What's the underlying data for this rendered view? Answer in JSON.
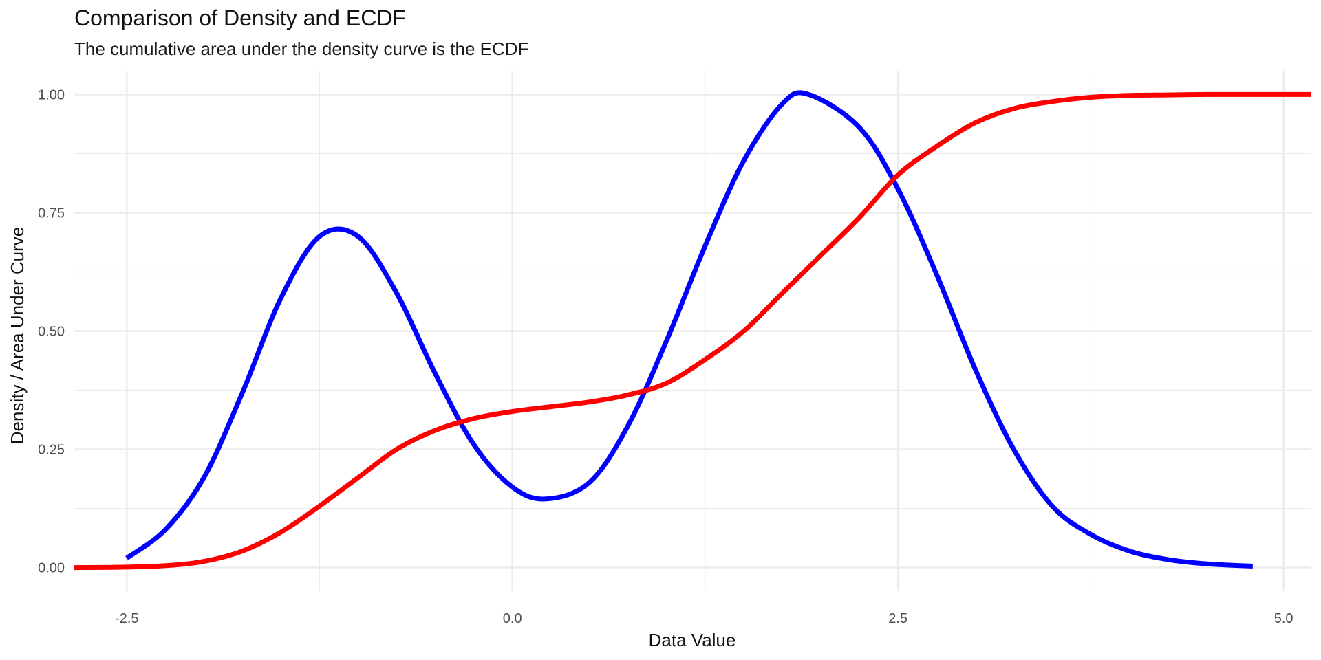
{
  "chart_data": {
    "type": "line",
    "title": "Comparison of Density and ECDF",
    "subtitle": "The cumulative area under the density curve is the ECDF",
    "xlabel": "Data Value",
    "ylabel": "Density / Area Under Curve",
    "xlim": [
      -2.84,
      5.18
    ],
    "ylim": [
      -0.05,
      1.05
    ],
    "x_ticks": [
      -2.5,
      0.0,
      2.5,
      5.0
    ],
    "x_tick_labels": [
      "-2.5",
      "0.0",
      "2.5",
      "5.0"
    ],
    "y_ticks": [
      0.0,
      0.25,
      0.5,
      0.75,
      1.0
    ],
    "y_tick_labels": [
      "0.00",
      "0.25",
      "0.50",
      "0.75",
      "1.00"
    ],
    "grid": true,
    "legend": "none",
    "colors": {
      "density": "#0000ff",
      "ecdf": "#ff0000",
      "grid": "#ebebeb"
    },
    "series": [
      {
        "color": "#0000ff",
        "x": [
          -2.5,
          -2.25,
          -2.0,
          -1.75,
          -1.5,
          -1.25,
          -1.0,
          -0.75,
          -0.5,
          -0.25,
          0.0,
          0.22,
          0.5,
          0.75,
          1.0,
          1.25,
          1.5,
          1.75,
          1.92,
          2.25,
          2.5,
          2.75,
          3.0,
          3.25,
          3.5,
          3.75,
          4.0,
          4.25,
          4.5,
          4.8
        ],
        "values": [
          0.02,
          0.08,
          0.19,
          0.37,
          0.57,
          0.7,
          0.7,
          0.58,
          0.41,
          0.26,
          0.17,
          0.145,
          0.18,
          0.3,
          0.48,
          0.68,
          0.86,
          0.98,
          1.0,
          0.93,
          0.8,
          0.62,
          0.42,
          0.25,
          0.13,
          0.07,
          0.035,
          0.017,
          0.008,
          0.003
        ]
      },
      {
        "color": "#ff0000",
        "x": [
          -2.84,
          -2.5,
          -2.25,
          -2.0,
          -1.75,
          -1.5,
          -1.25,
          -1.0,
          -0.75,
          -0.5,
          -0.25,
          0.0,
          0.25,
          0.5,
          0.75,
          1.0,
          1.25,
          1.5,
          1.75,
          2.0,
          2.25,
          2.5,
          2.75,
          3.0,
          3.25,
          3.5,
          3.75,
          4.0,
          4.25,
          4.5,
          4.75,
          5.18
        ],
        "values": [
          0.0,
          0.001,
          0.004,
          0.013,
          0.035,
          0.075,
          0.13,
          0.19,
          0.25,
          0.29,
          0.315,
          0.33,
          0.34,
          0.35,
          0.365,
          0.39,
          0.44,
          0.5,
          0.58,
          0.66,
          0.74,
          0.83,
          0.89,
          0.94,
          0.97,
          0.985,
          0.994,
          0.998,
          0.999,
          1.0,
          1.0,
          1.0
        ]
      }
    ]
  }
}
